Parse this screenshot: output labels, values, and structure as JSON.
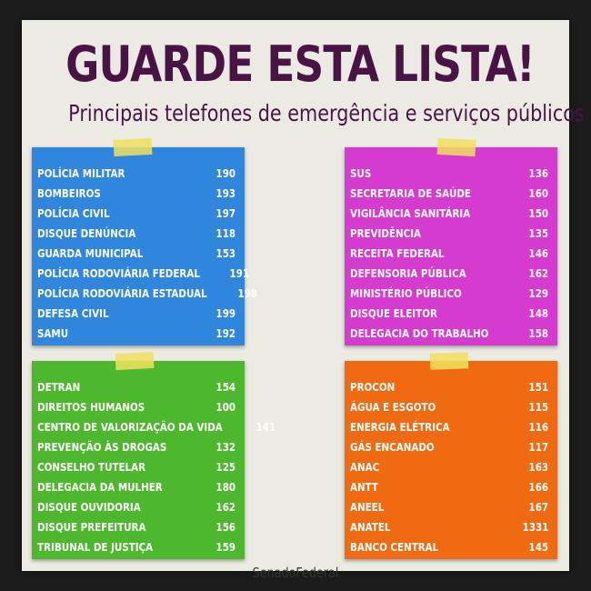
{
  "title": "GUARDE ESTA LISTA!",
  "subtitle": "Principais telefones de emergência e serviços públicos",
  "colors": {
    "title": "#4a1346",
    "blue": "#2f86dc",
    "pink": "#d63bd0",
    "green": "#4db82d",
    "orange": "#f06a12",
    "tape": "#f0e15f"
  },
  "cards": {
    "blue": [
      {
        "name": "POLÍCIA MILITAR",
        "number": "190"
      },
      {
        "name": "BOMBEIROS",
        "number": "193"
      },
      {
        "name": "POLÍCIA CIVIL",
        "number": "197"
      },
      {
        "name": "DISQUE DENÚNCIA",
        "number": "118"
      },
      {
        "name": "GUARDA MUNICIPAL",
        "number": "153"
      },
      {
        "name": "POLÍCIA RODOVIÁRIA FEDERAL",
        "number": "191"
      },
      {
        "name": "POLÍCIA RODOVIÁRIA ESTADUAL",
        "number": "198"
      },
      {
        "name": "DEFESA CIVIL",
        "number": "199"
      },
      {
        "name": "SAMU",
        "number": "192"
      }
    ],
    "pink": [
      {
        "name": "SUS",
        "number": "136"
      },
      {
        "name": "SECRETARIA DE SAÚDE",
        "number": "160"
      },
      {
        "name": "VIGILÂNCIA SANITÁRIA",
        "number": "150"
      },
      {
        "name": "PREVIDÊNCIA",
        "number": "135"
      },
      {
        "name": "RECEITA FEDERAL",
        "number": "146"
      },
      {
        "name": "DEFENSORIA PÚBLICA",
        "number": "162"
      },
      {
        "name": "MINISTÉRIO PÚBLICO",
        "number": "129"
      },
      {
        "name": "DISQUE ELEITOR",
        "number": "148"
      },
      {
        "name": "DELEGACIA DO TRABALHO",
        "number": "158"
      }
    ],
    "green": [
      {
        "name": "DETRAN",
        "number": "154"
      },
      {
        "name": "DIREITOS HUMANOS",
        "number": "100"
      },
      {
        "name": "CENTRO DE VALORIZAÇÃO DA VIDA",
        "number": "141"
      },
      {
        "name": "PREVENÇÃO ÀS DROGAS",
        "number": "132"
      },
      {
        "name": "CONSELHO TUTELAR",
        "number": "125"
      },
      {
        "name": "DELEGACIA DA MULHER",
        "number": "180"
      },
      {
        "name": "DISQUE OUVIDORIA",
        "number": "162"
      },
      {
        "name": "DISQUE PREFEITURA",
        "number": "156"
      },
      {
        "name": "TRIBUNAL DE JUSTIÇA",
        "number": "159"
      }
    ],
    "orange": [
      {
        "name": "PROCON",
        "number": "151"
      },
      {
        "name": "ÁGUA E ESGOTO",
        "number": "115"
      },
      {
        "name": "ENERGIA ELÉTRICA",
        "number": "116"
      },
      {
        "name": "GÁS ENCANADO",
        "number": "117"
      },
      {
        "name": "ANAC",
        "number": "163"
      },
      {
        "name": "ANTT",
        "number": "166"
      },
      {
        "name": "ANEEL",
        "number": "167"
      },
      {
        "name": "ANATEL",
        "number": "1331"
      },
      {
        "name": "BANCO CENTRAL",
        "number": "145"
      }
    ]
  },
  "footer": "SenadoFederal"
}
